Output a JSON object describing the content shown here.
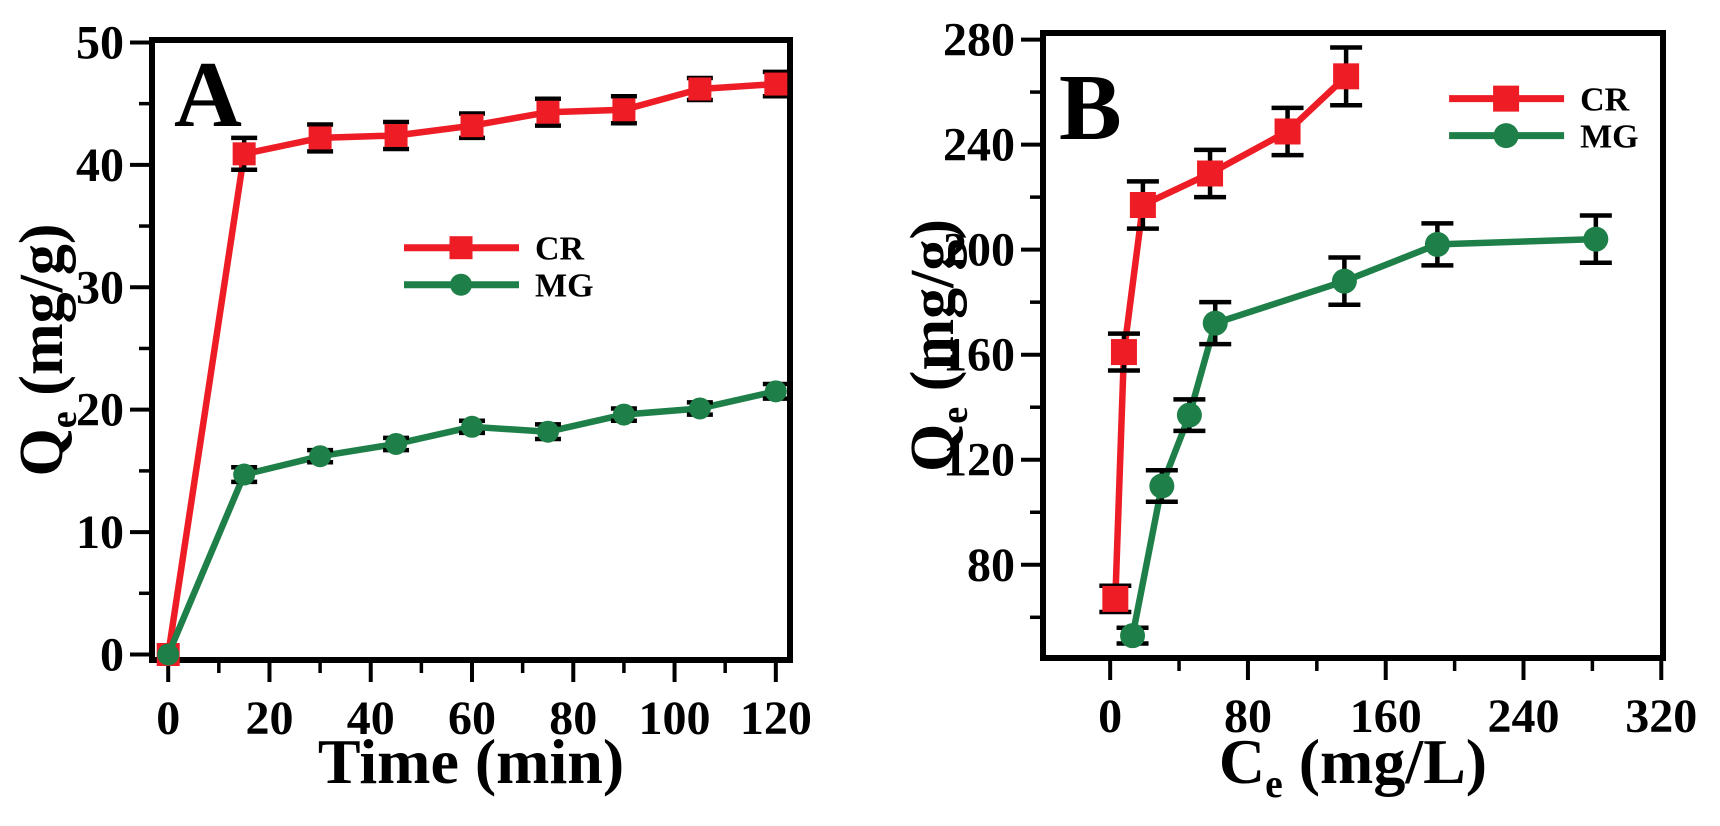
{
  "figure": {
    "background": "#ffffff",
    "frame_color": "#000000",
    "text_color": "#000000",
    "errorbar_color": "#000000"
  },
  "chart_data": [
    {
      "id": "panel-A",
      "type": "line",
      "panel_letter": "A",
      "title": "",
      "xlabel": "Time (min)",
      "ylabel": "Qe (mg/g)",
      "xlabel_rich": [
        {
          "t": "Time (min)"
        }
      ],
      "ylabel_rich": [
        {
          "t": "Q"
        },
        {
          "t": "e",
          "sub": true
        },
        {
          "t": " (mg/g)"
        }
      ],
      "xlim": [
        -3.2,
        122.8
      ],
      "ylim": [
        -0.45,
        50.2
      ],
      "grid": false,
      "error_bars": true,
      "xticks": {
        "major": [
          0,
          20,
          40,
          60,
          80,
          100,
          120
        ],
        "labels": [
          "0",
          "20",
          "40",
          "60",
          "80",
          "100",
          "120"
        ],
        "minor": [
          10,
          30,
          50,
          70,
          90,
          110
        ]
      },
      "yticks": {
        "major": [
          0,
          10,
          20,
          30,
          40,
          50
        ],
        "labels": [
          "0",
          "10",
          "20",
          "30",
          "40",
          "50"
        ],
        "minor": [
          5,
          15,
          25,
          35,
          45
        ]
      },
      "legend": {
        "position": "center",
        "fx": 0.395,
        "fy": 0.335,
        "entries": [
          "CR",
          "MG"
        ]
      },
      "series": [
        {
          "name": "CR",
          "color": "#ee1c25",
          "marker": "square",
          "x": [
            0,
            15,
            30,
            45,
            60,
            75,
            90,
            105,
            120
          ],
          "y": [
            0,
            40.9,
            42.2,
            42.4,
            43.2,
            44.3,
            44.5,
            46.2,
            46.6
          ],
          "yerr": [
            0,
            1.3,
            1.1,
            1.1,
            1.0,
            1.1,
            1.1,
            0.9,
            1.0
          ]
        },
        {
          "name": "MG",
          "color": "#1e8048",
          "marker": "circle",
          "x": [
            0,
            15,
            30,
            45,
            60,
            75,
            90,
            105,
            120
          ],
          "y": [
            0,
            14.7,
            16.2,
            17.2,
            18.6,
            18.2,
            19.6,
            20.1,
            21.5
          ],
          "yerr": [
            0,
            0.6,
            0.5,
            0.5,
            0.5,
            0.6,
            0.5,
            0.5,
            0.6
          ]
        }
      ]
    },
    {
      "id": "panel-B",
      "type": "line",
      "panel_letter": "B",
      "title": "",
      "xlabel": "Ce (mg/L)",
      "ylabel": "Qe (mg/g)",
      "xlabel_rich": [
        {
          "t": "C"
        },
        {
          "t": "e",
          "sub": true
        },
        {
          "t": " (mg/L)"
        }
      ],
      "ylabel_rich": [
        {
          "t": "Q"
        },
        {
          "t": "e",
          "sub": true
        },
        {
          "t": " (mg/g)"
        }
      ],
      "xlim": [
        -39,
        321
      ],
      "ylim": [
        44.5,
        282.5
      ],
      "grid": false,
      "error_bars": true,
      "xticks": {
        "major": [
          0,
          80,
          160,
          240,
          320
        ],
        "labels": [
          "0",
          "80",
          "160",
          "240",
          "320"
        ],
        "minor": [
          40,
          120,
          200,
          280
        ]
      },
      "yticks": {
        "major": [
          80,
          120,
          160,
          200,
          240,
          280
        ],
        "labels": [
          "80",
          "120",
          "160",
          "200",
          "240",
          "280"
        ],
        "minor": [
          60,
          100,
          140,
          180,
          220,
          260
        ]
      },
      "legend": {
        "position": "top-right",
        "fx": 0.655,
        "fy": 0.105,
        "entries": [
          "CR",
          "MG"
        ]
      },
      "series": [
        {
          "name": "CR",
          "color": "#ee1c25",
          "marker": "square",
          "x": [
            3,
            8,
            19,
            58,
            103,
            137
          ],
          "y": [
            67,
            161,
            217,
            229,
            245,
            266
          ],
          "yerr": [
            5,
            7,
            9,
            9,
            9,
            11
          ]
        },
        {
          "name": "MG",
          "color": "#1e8048",
          "marker": "circle",
          "x": [
            13,
            30,
            46,
            61,
            136,
            190,
            282
          ],
          "y": [
            53,
            110,
            137,
            172,
            188,
            202,
            204
          ],
          "yerr": [
            3,
            6,
            6,
            8,
            9,
            8,
            9
          ]
        }
      ]
    }
  ]
}
